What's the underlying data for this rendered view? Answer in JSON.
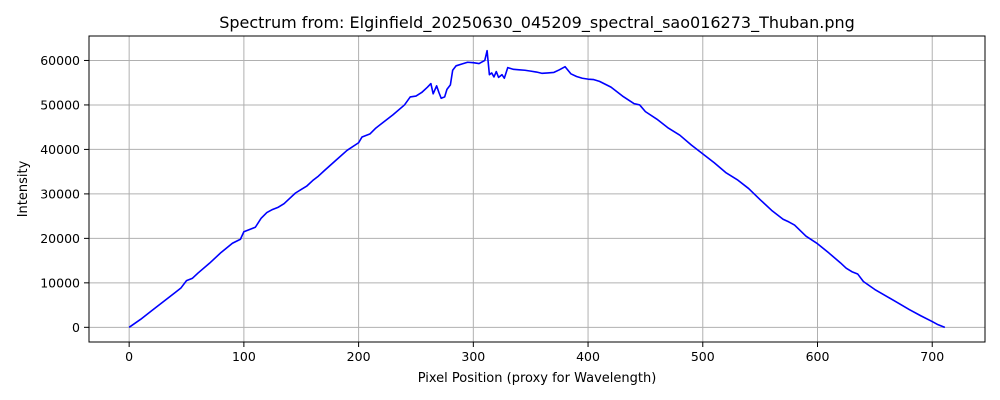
{
  "chart_data": {
    "type": "line",
    "title": "Spectrum from: Elginfield_20250630_045209_spectral_sao016273_Thuban.png",
    "xlabel": "Pixel Position (proxy for Wavelength)",
    "ylabel": "Intensity",
    "xlim": [
      -35,
      746
    ],
    "ylim": [
      -3300,
      65500
    ],
    "grid": true,
    "x_ticks": [
      0,
      100,
      200,
      300,
      400,
      500,
      600,
      700
    ],
    "y_ticks": [
      0,
      10000,
      20000,
      30000,
      40000,
      50000,
      60000
    ],
    "line_color": "#0000ff",
    "series": [
      {
        "points": [
          [
            0,
            0
          ],
          [
            10,
            1800
          ],
          [
            20,
            3800
          ],
          [
            30,
            5800
          ],
          [
            40,
            7800
          ],
          [
            45,
            8800
          ],
          [
            50,
            10500
          ],
          [
            55,
            11000
          ],
          [
            60,
            12200
          ],
          [
            70,
            14400
          ],
          [
            80,
            16800
          ],
          [
            90,
            18900
          ],
          [
            97,
            19800
          ],
          [
            100,
            21500
          ],
          [
            105,
            22000
          ],
          [
            110,
            22500
          ],
          [
            115,
            24500
          ],
          [
            120,
            25800
          ],
          [
            125,
            26500
          ],
          [
            130,
            27000
          ],
          [
            135,
            27800
          ],
          [
            140,
            29000
          ],
          [
            145,
            30200
          ],
          [
            150,
            31000
          ],
          [
            155,
            31800
          ],
          [
            160,
            33000
          ],
          [
            165,
            34000
          ],
          [
            170,
            35200
          ],
          [
            180,
            37500
          ],
          [
            190,
            39800
          ],
          [
            200,
            41500
          ],
          [
            203,
            42800
          ],
          [
            210,
            43500
          ],
          [
            215,
            44800
          ],
          [
            220,
            45800
          ],
          [
            230,
            47800
          ],
          [
            240,
            50000
          ],
          [
            245,
            51800
          ],
          [
            250,
            52000
          ],
          [
            255,
            52800
          ],
          [
            260,
            54000
          ],
          [
            263,
            54800
          ],
          [
            265,
            52500
          ],
          [
            268,
            54300
          ],
          [
            270,
            52800
          ],
          [
            272,
            51500
          ],
          [
            275,
            51800
          ],
          [
            277,
            53500
          ],
          [
            280,
            54500
          ],
          [
            282,
            57800
          ],
          [
            285,
            58800
          ],
          [
            290,
            59200
          ],
          [
            295,
            59600
          ],
          [
            300,
            59500
          ],
          [
            305,
            59300
          ],
          [
            310,
            60000
          ],
          [
            312,
            62200
          ],
          [
            314,
            56800
          ],
          [
            316,
            57200
          ],
          [
            318,
            56300
          ],
          [
            320,
            57500
          ],
          [
            322,
            56200
          ],
          [
            325,
            56800
          ],
          [
            327,
            56000
          ],
          [
            330,
            58400
          ],
          [
            335,
            58000
          ],
          [
            340,
            57900
          ],
          [
            345,
            57800
          ],
          [
            350,
            57600
          ],
          [
            355,
            57400
          ],
          [
            360,
            57100
          ],
          [
            365,
            57200
          ],
          [
            370,
            57300
          ],
          [
            375,
            57900
          ],
          [
            380,
            58600
          ],
          [
            385,
            57000
          ],
          [
            390,
            56400
          ],
          [
            395,
            56000
          ],
          [
            400,
            55800
          ],
          [
            405,
            55700
          ],
          [
            410,
            55300
          ],
          [
            420,
            54000
          ],
          [
            430,
            52000
          ],
          [
            440,
            50300
          ],
          [
            445,
            50000
          ],
          [
            450,
            48500
          ],
          [
            460,
            46800
          ],
          [
            470,
            44800
          ],
          [
            480,
            43200
          ],
          [
            490,
            41000
          ],
          [
            500,
            39000
          ],
          [
            510,
            37000
          ],
          [
            520,
            34800
          ],
          [
            530,
            33200
          ],
          [
            540,
            31200
          ],
          [
            550,
            28700
          ],
          [
            560,
            26300
          ],
          [
            570,
            24300
          ],
          [
            575,
            23700
          ],
          [
            580,
            23000
          ],
          [
            590,
            20500
          ],
          [
            600,
            18800
          ],
          [
            610,
            16700
          ],
          [
            620,
            14500
          ],
          [
            625,
            13300
          ],
          [
            630,
            12500
          ],
          [
            635,
            12000
          ],
          [
            640,
            10300
          ],
          [
            650,
            8500
          ],
          [
            660,
            7000
          ],
          [
            670,
            5500
          ],
          [
            680,
            4000
          ],
          [
            690,
            2600
          ],
          [
            700,
            1300
          ],
          [
            705,
            600
          ],
          [
            711,
            0
          ]
        ]
      }
    ]
  }
}
